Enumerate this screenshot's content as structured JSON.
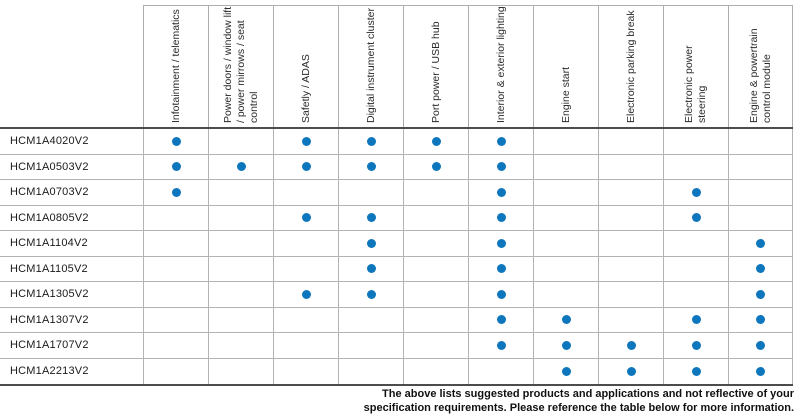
{
  "table": {
    "columns": [
      "Infotainment / telematics",
      "Power doors / window lift\n/ power mirrows / seat\ncontrol",
      "Safetly / ADAS",
      "Digital instrument cluster",
      "Port power / USB hub",
      "Interior & exterior lighting",
      "Engine start",
      "Electronic parking break",
      "Electronic power steering",
      "Engine & powertrain\ncontrol module"
    ],
    "products": [
      {
        "name": "HCM1A4020V2",
        "applications": [
          1,
          0,
          1,
          1,
          1,
          1,
          0,
          0,
          0,
          0
        ]
      },
      {
        "name": "HCM1A0503V2",
        "applications": [
          1,
          1,
          1,
          1,
          1,
          1,
          0,
          0,
          0,
          0
        ]
      },
      {
        "name": "HCM1A0703V2",
        "applications": [
          1,
          0,
          0,
          0,
          0,
          1,
          0,
          0,
          1,
          0
        ]
      },
      {
        "name": "HCM1A0805V2",
        "applications": [
          0,
          0,
          1,
          1,
          0,
          1,
          0,
          0,
          1,
          0
        ]
      },
      {
        "name": "HCM1A1104V2",
        "applications": [
          0,
          0,
          0,
          1,
          0,
          1,
          0,
          0,
          0,
          1
        ]
      },
      {
        "name": "HCM1A1105V2",
        "applications": [
          0,
          0,
          0,
          1,
          0,
          1,
          0,
          0,
          0,
          1
        ]
      },
      {
        "name": "HCM1A1305V2",
        "applications": [
          0,
          0,
          1,
          1,
          0,
          1,
          0,
          0,
          0,
          1
        ]
      },
      {
        "name": "HCM1A1307V2",
        "applications": [
          0,
          0,
          0,
          0,
          0,
          1,
          1,
          0,
          1,
          1
        ]
      },
      {
        "name": "HCM1A1707V2",
        "applications": [
          0,
          0,
          0,
          0,
          0,
          1,
          1,
          1,
          1,
          1
        ]
      },
      {
        "name": "HCM1A2213V2",
        "applications": [
          0,
          0,
          0,
          0,
          0,
          0,
          1,
          1,
          1,
          1
        ]
      }
    ],
    "dot_color": "#0e76bc",
    "dot_meaning": "supported-application-dot"
  },
  "footer": {
    "line1": "The above lists suggested products and applications and not reflective of your",
    "line2": "specification requirements. Please reference the table below for more information."
  }
}
